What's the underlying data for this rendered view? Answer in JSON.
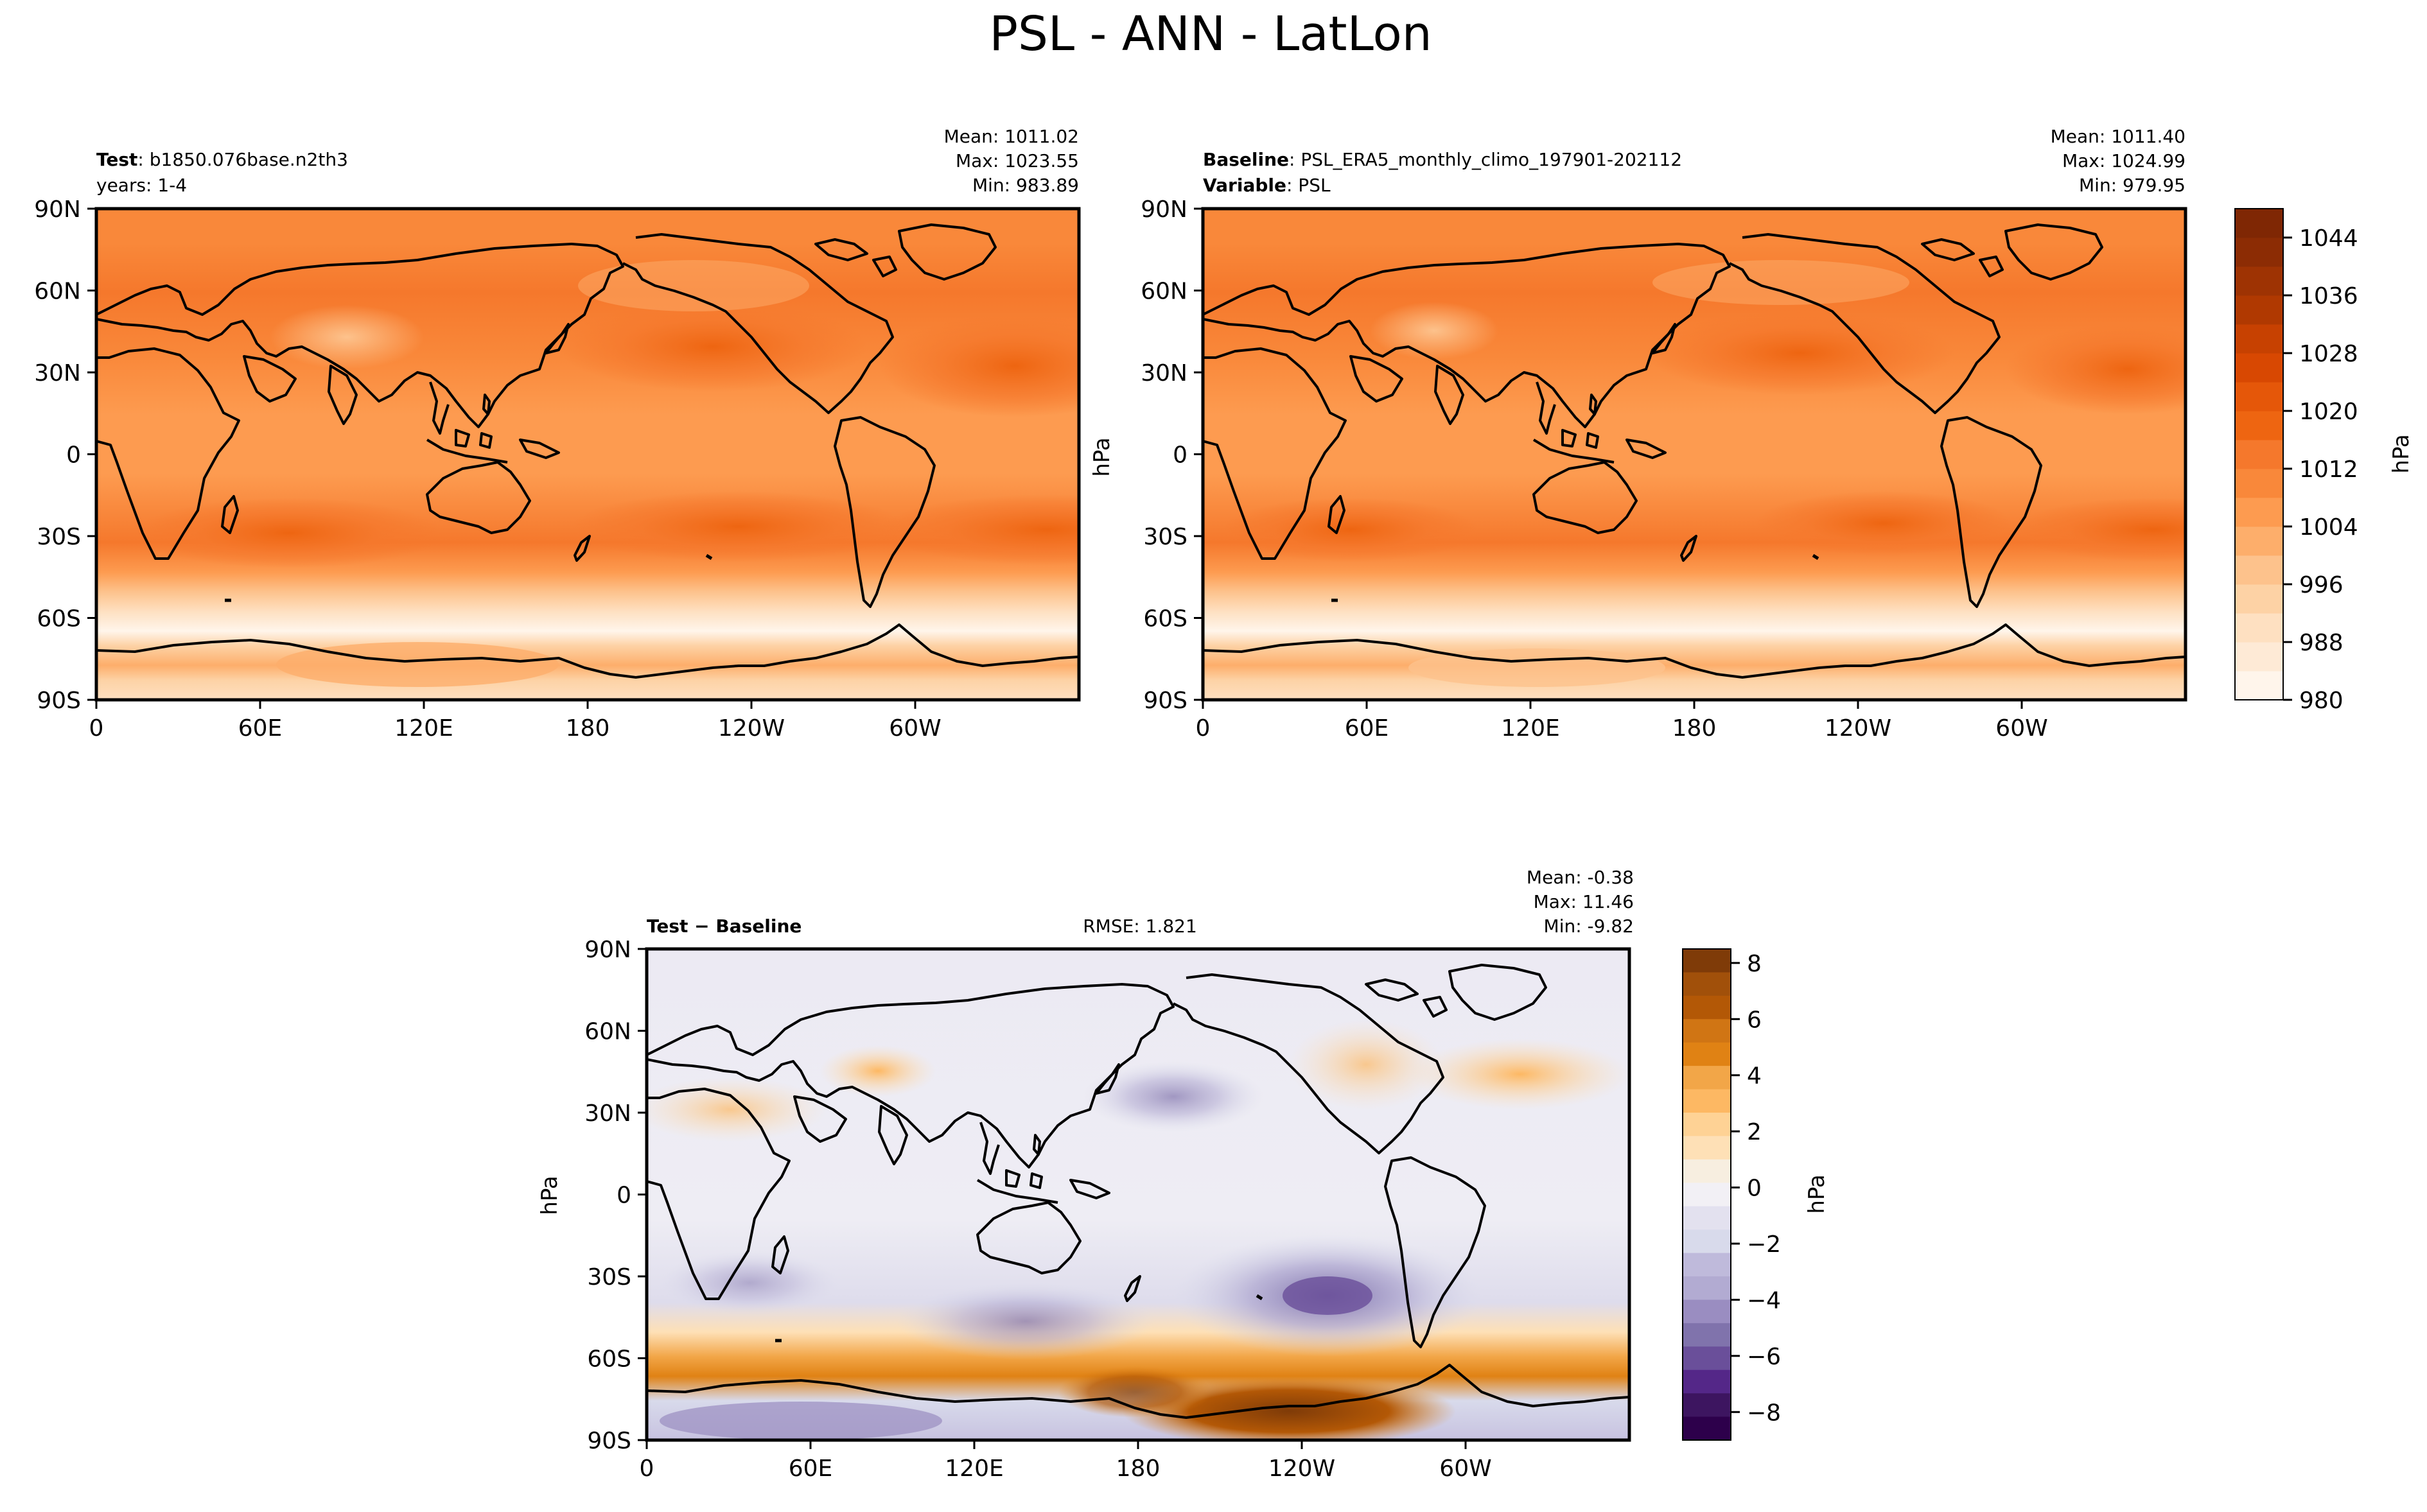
{
  "figure": {
    "title": "PSL - ANN - LatLon"
  },
  "lon_ticks": [
    "0",
    "60E",
    "120E",
    "180",
    "120W",
    "60W"
  ],
  "lat_ticks": [
    "90N",
    "60N",
    "30N",
    "0",
    "30S",
    "60S",
    "90S"
  ],
  "panels": {
    "test": {
      "header_bold_1": "Test",
      "header_text_1": ": b1850.076base.n2th3",
      "header_text_2": "years: 1-4",
      "stats": {
        "mean": "Mean: 1011.02",
        "max": "Max: 1023.55",
        "min": "Min: 983.89"
      }
    },
    "baseline": {
      "header_bold_1": "Baseline",
      "header_text_1": ": PSL_ERA5_monthly_climo_197901-202112",
      "header_bold_2": "Variable",
      "header_text_2": ": PSL",
      "stats": {
        "mean": "Mean: 1011.40",
        "max": "Max: 1024.99",
        "min": "Min: 979.95"
      }
    },
    "diff": {
      "header_bold": "Test − Baseline",
      "rmse": "RMSE: 1.821",
      "stats": {
        "mean": "Mean: -0.38",
        "max": "Max: 11.46",
        "min": "Min: -9.82"
      }
    }
  },
  "colorbars": {
    "psl": {
      "label": "hPa",
      "ticks": [
        "980",
        "988",
        "996",
        "1004",
        "1012",
        "1020",
        "1028",
        "1036",
        "1044"
      ],
      "colors": [
        "#fff5eb",
        "#feead6",
        "#fee0c1",
        "#fdd2a5",
        "#fdc28c",
        "#fdae6b",
        "#fd9b50",
        "#f9883a",
        "#f5782c",
        "#ee6511",
        "#e55709",
        "#d84802",
        "#c74101",
        "#b03901",
        "#9e3303",
        "#8c2c04",
        "#7f2704"
      ]
    },
    "diff": {
      "label": "hPa",
      "ticks": [
        "8",
        "6",
        "4",
        "2",
        "0",
        "−2",
        "−4",
        "−6",
        "−8"
      ],
      "colors": [
        "#7f3b08",
        "#a1500a",
        "#b35806",
        "#d07514",
        "#e08214",
        "#f2a648",
        "#fdb863",
        "#fed295",
        "#fee0b6",
        "#f7eee0",
        "#f2f0f5",
        "#e3e1ef",
        "#d8daeb",
        "#bfbadb",
        "#b2abd2",
        "#9a8dc1",
        "#8073ac",
        "#6a4f9a",
        "#542788",
        "#3d1560",
        "#2d004b"
      ]
    }
  },
  "side_labels": {
    "baseline_ylabel": "hPa",
    "psl_cb_label": "hPa",
    "diff_ylabel": "hPa",
    "diff_cb_label": "hPa"
  },
  "chart_data": [
    {
      "type": "heatmap",
      "title": "PSL - ANN - LatLon",
      "panel": "Test",
      "case": "b1850.076base.n2th3",
      "years": "1-4",
      "variable": "PSL",
      "units": "hPa",
      "mean": 1011.02,
      "max": 1023.55,
      "min": 983.89,
      "x_ticks": [
        "0",
        "60E",
        "120E",
        "180",
        "120W",
        "60W"
      ],
      "y_ticks": [
        "90N",
        "60N",
        "30N",
        "0",
        "30S",
        "60S",
        "90S"
      ],
      "colorbar_range": [
        980,
        1048
      ],
      "colorbar_step": 4
    },
    {
      "type": "heatmap",
      "panel": "Baseline",
      "case": "PSL_ERA5_monthly_climo_197901-202112",
      "variable": "PSL",
      "units": "hPa",
      "mean": 1011.4,
      "max": 1024.99,
      "min": 979.95,
      "x_ticks": [
        "0",
        "60E",
        "120E",
        "180",
        "120W",
        "60W"
      ],
      "y_ticks": [
        "90N",
        "60N",
        "30N",
        "0",
        "30S",
        "60S",
        "90S"
      ],
      "colorbar_range": [
        980,
        1048
      ],
      "colorbar_step": 4
    },
    {
      "type": "heatmap",
      "panel": "Test − Baseline",
      "units": "hPa",
      "rmse": 1.821,
      "mean": -0.38,
      "max": 11.46,
      "min": -9.82,
      "x_ticks": [
        "0",
        "60E",
        "120E",
        "180",
        "120W",
        "60W"
      ],
      "y_ticks": [
        "90N",
        "60N",
        "30N",
        "0",
        "30S",
        "60S",
        "90S"
      ],
      "colorbar_range": [
        -9,
        8.5
      ],
      "colorbar_ticks": [
        -8,
        -6,
        -4,
        -2,
        0,
        2,
        4,
        6,
        8
      ]
    }
  ]
}
